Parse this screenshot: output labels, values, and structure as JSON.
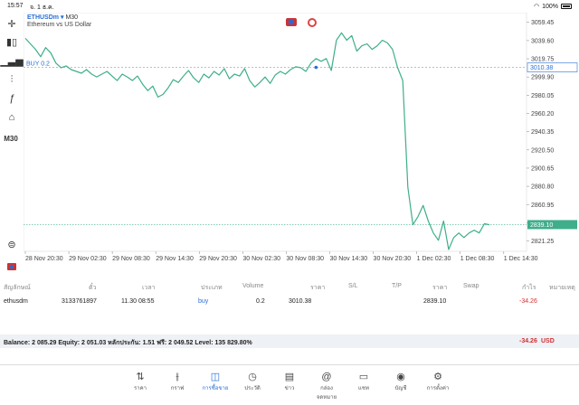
{
  "status": {
    "time": "15:57",
    "date": "จ. 1 ธ.ค.",
    "battery": "100%"
  },
  "chart": {
    "symbol": "ETHUSDm",
    "arrow": "▾",
    "timeframe": "M30",
    "description": "Ethereum vs US Dollar",
    "buy_label": "BUY 0.2",
    "buy_price": "3010.38",
    "current_price": "2839.10",
    "timeframe_button": "M30",
    "y_ticks": [
      "3059.45",
      "3039.60",
      "3019.75",
      "2999.90",
      "2980.05",
      "2960.20",
      "2940.35",
      "2920.50",
      "2900.65",
      "2880.80",
      "2860.95",
      "2841.10",
      "2821.25"
    ],
    "x_ticks": [
      "28 Nov 20:30",
      "29 Nov 02:30",
      "29 Nov 08:30",
      "29 Nov 14:30",
      "29 Nov 20:30",
      "30 Nov 02:30",
      "30 Nov 08:30",
      "30 Nov 14:30",
      "30 Nov 20:30",
      "1 Dec 02:30",
      "1 Dec 08:30",
      "1 Dec 14:30"
    ],
    "accent_color": "#2a6fd6",
    "line_color": "#3fae8a"
  },
  "chart_data": {
    "type": "line",
    "y_range": [
      2810,
      3070
    ],
    "values": [
      3042,
      3036,
      3030,
      3022,
      3032,
      3026,
      3015,
      3010,
      3012,
      3008,
      3006,
      3004,
      3008,
      3003,
      3000,
      3003,
      3006,
      3001,
      2996,
      3003,
      3000,
      2996,
      3001,
      2992,
      2985,
      2990,
      2978,
      2981,
      2988,
      2997,
      2994,
      3001,
      3007,
      2999,
      2994,
      3003,
      2999,
      3006,
      3002,
      3009,
      2998,
      3003,
      3001,
      3009,
      2996,
      2989,
      2994,
      3000,
      2993,
      3002,
      3006,
      3003,
      3008,
      3011,
      3010,
      3006,
      3015,
      3020,
      3017,
      3020,
      3007,
      3040,
      3048,
      3040,
      3045,
      3028,
      3034,
      3036,
      3030,
      3034,
      3040,
      3037,
      3030,
      3010,
      2996,
      2880,
      2839,
      2848,
      2860,
      2843,
      2830,
      2822,
      2843,
      2812,
      2825,
      2830,
      2825,
      2830,
      2833,
      2830,
      2840,
      2839
    ]
  },
  "positions": {
    "headers": [
      "สัญลักษณ์",
      "ตั๋ว",
      "เวลา",
      "ประเภท",
      "Volume",
      "ราคา",
      "S/L",
      "T/P",
      "ราคา",
      "Swap",
      "กำไร",
      "หมายเหตุ"
    ],
    "row": {
      "symbol": "ethusdm",
      "ticket": "3133761897",
      "time": "11.30 08:55",
      "type": "buy",
      "volume": "0.2",
      "open_price": "3010.38",
      "price": "2839.10",
      "profit": "-34.26"
    },
    "balance_text": "Balance: 2 085.29 Equity: 2 051.03 หลักประกัน: 1.51 ฟรี: 2 049.52 Level: 135 829.80%",
    "total_profit": "-34.26",
    "currency": "USD"
  },
  "tabs": [
    {
      "label": "ราคา",
      "icon": "quotes-icon"
    },
    {
      "label": "กราฟ",
      "icon": "chart-icon"
    },
    {
      "label": "การซื้อขาย",
      "icon": "trade-icon"
    },
    {
      "label": "ประวัติ",
      "icon": "history-icon"
    },
    {
      "label": "ข่าว",
      "icon": "news-icon"
    },
    {
      "label": "กล่องจดหมาย",
      "icon": "mail-icon"
    },
    {
      "label": "แชท",
      "icon": "chat-icon"
    },
    {
      "label": "บัญชี",
      "icon": "account-icon"
    },
    {
      "label": "การตั้งค่า",
      "icon": "settings-icon"
    }
  ]
}
